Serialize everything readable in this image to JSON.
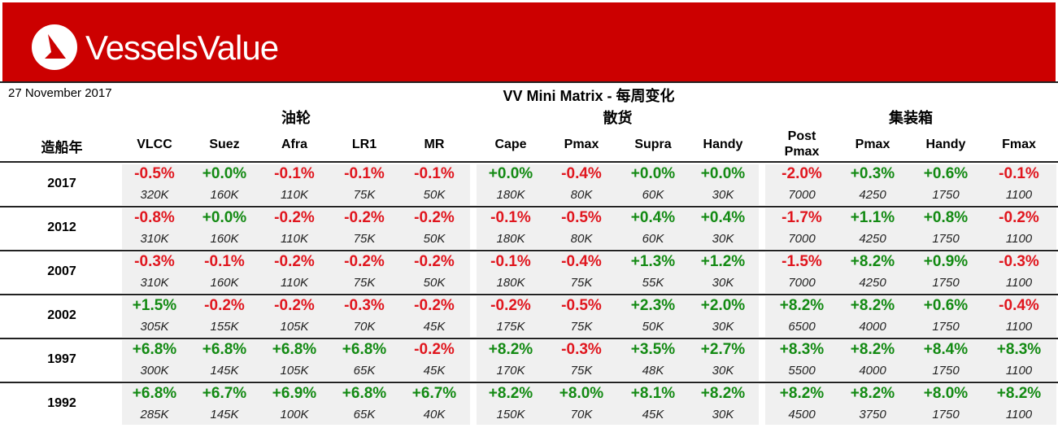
{
  "header": {
    "logo": "VesselsValue",
    "date": "27 November 2017",
    "title": "VV Mini Matrix - 每周变化"
  },
  "year_header": "造船年",
  "groups": [
    {
      "label": "油轮",
      "columns": [
        "VLCC",
        "Suez",
        "Afra",
        "LR1",
        "MR"
      ]
    },
    {
      "label": "散货",
      "columns": [
        "Cape",
        "Pmax",
        "Supra",
        "Handy"
      ]
    },
    {
      "label": "集装箱",
      "columns": [
        "Post Pmax",
        "Pmax",
        "Handy",
        "Fmax"
      ]
    }
  ],
  "rows": [
    {
      "year": "2017",
      "cells": [
        [
          "-0.5%",
          "320K"
        ],
        [
          "+0.0%",
          "160K"
        ],
        [
          "-0.1%",
          "110K"
        ],
        [
          "-0.1%",
          "75K"
        ],
        [
          "-0.1%",
          "50K"
        ],
        [
          "+0.0%",
          "180K"
        ],
        [
          "-0.4%",
          "80K"
        ],
        [
          "+0.0%",
          "60K"
        ],
        [
          "+0.0%",
          "30K"
        ],
        [
          "-2.0%",
          "7000"
        ],
        [
          "+0.3%",
          "4250"
        ],
        [
          "+0.6%",
          "1750"
        ],
        [
          "-0.1%",
          "1100"
        ]
      ]
    },
    {
      "year": "2012",
      "cells": [
        [
          "-0.8%",
          "310K"
        ],
        [
          "+0.0%",
          "160K"
        ],
        [
          "-0.2%",
          "110K"
        ],
        [
          "-0.2%",
          "75K"
        ],
        [
          "-0.2%",
          "50K"
        ],
        [
          "-0.1%",
          "180K"
        ],
        [
          "-0.5%",
          "80K"
        ],
        [
          "+0.4%",
          "60K"
        ],
        [
          "+0.4%",
          "30K"
        ],
        [
          "-1.7%",
          "7000"
        ],
        [
          "+1.1%",
          "4250"
        ],
        [
          "+0.8%",
          "1750"
        ],
        [
          "-0.2%",
          "1100"
        ]
      ]
    },
    {
      "year": "2007",
      "cells": [
        [
          "-0.3%",
          "310K"
        ],
        [
          "-0.1%",
          "160K"
        ],
        [
          "-0.2%",
          "110K"
        ],
        [
          "-0.2%",
          "75K"
        ],
        [
          "-0.2%",
          "50K"
        ],
        [
          "-0.1%",
          "180K"
        ],
        [
          "-0.4%",
          "75K"
        ],
        [
          "+1.3%",
          "55K"
        ],
        [
          "+1.2%",
          "30K"
        ],
        [
          "-1.5%",
          "7000"
        ],
        [
          "+8.2%",
          "4250"
        ],
        [
          "+0.9%",
          "1750"
        ],
        [
          "-0.3%",
          "1100"
        ]
      ]
    },
    {
      "year": "2002",
      "cells": [
        [
          "+1.5%",
          "305K"
        ],
        [
          "-0.2%",
          "155K"
        ],
        [
          "-0.2%",
          "105K"
        ],
        [
          "-0.3%",
          "70K"
        ],
        [
          "-0.2%",
          "45K"
        ],
        [
          "-0.2%",
          "175K"
        ],
        [
          "-0.5%",
          "75K"
        ],
        [
          "+2.3%",
          "50K"
        ],
        [
          "+2.0%",
          "30K"
        ],
        [
          "+8.2%",
          "6500"
        ],
        [
          "+8.2%",
          "4000"
        ],
        [
          "+0.6%",
          "1750"
        ],
        [
          "-0.4%",
          "1100"
        ]
      ]
    },
    {
      "year": "1997",
      "cells": [
        [
          "+6.8%",
          "300K"
        ],
        [
          "+6.8%",
          "145K"
        ],
        [
          "+6.8%",
          "105K"
        ],
        [
          "+6.8%",
          "65K"
        ],
        [
          "-0.2%",
          "45K"
        ],
        [
          "+8.2%",
          "170K"
        ],
        [
          "-0.3%",
          "75K"
        ],
        [
          "+3.5%",
          "48K"
        ],
        [
          "+2.7%",
          "30K"
        ],
        [
          "+8.3%",
          "5500"
        ],
        [
          "+8.2%",
          "4000"
        ],
        [
          "+8.4%",
          "1750"
        ],
        [
          "+8.3%",
          "1100"
        ]
      ]
    },
    {
      "year": "1992",
      "cells": [
        [
          "+6.8%",
          "285K"
        ],
        [
          "+6.7%",
          "145K"
        ],
        [
          "+6.9%",
          "100K"
        ],
        [
          "+6.8%",
          "65K"
        ],
        [
          "+6.7%",
          "40K"
        ],
        [
          "+8.2%",
          "150K"
        ],
        [
          "+8.0%",
          "70K"
        ],
        [
          "+8.1%",
          "45K"
        ],
        [
          "+8.2%",
          "30K"
        ],
        [
          "+8.2%",
          "4500"
        ],
        [
          "+8.2%",
          "3750"
        ],
        [
          "+8.0%",
          "1750"
        ],
        [
          "+8.2%",
          "1100"
        ]
      ]
    }
  ]
}
